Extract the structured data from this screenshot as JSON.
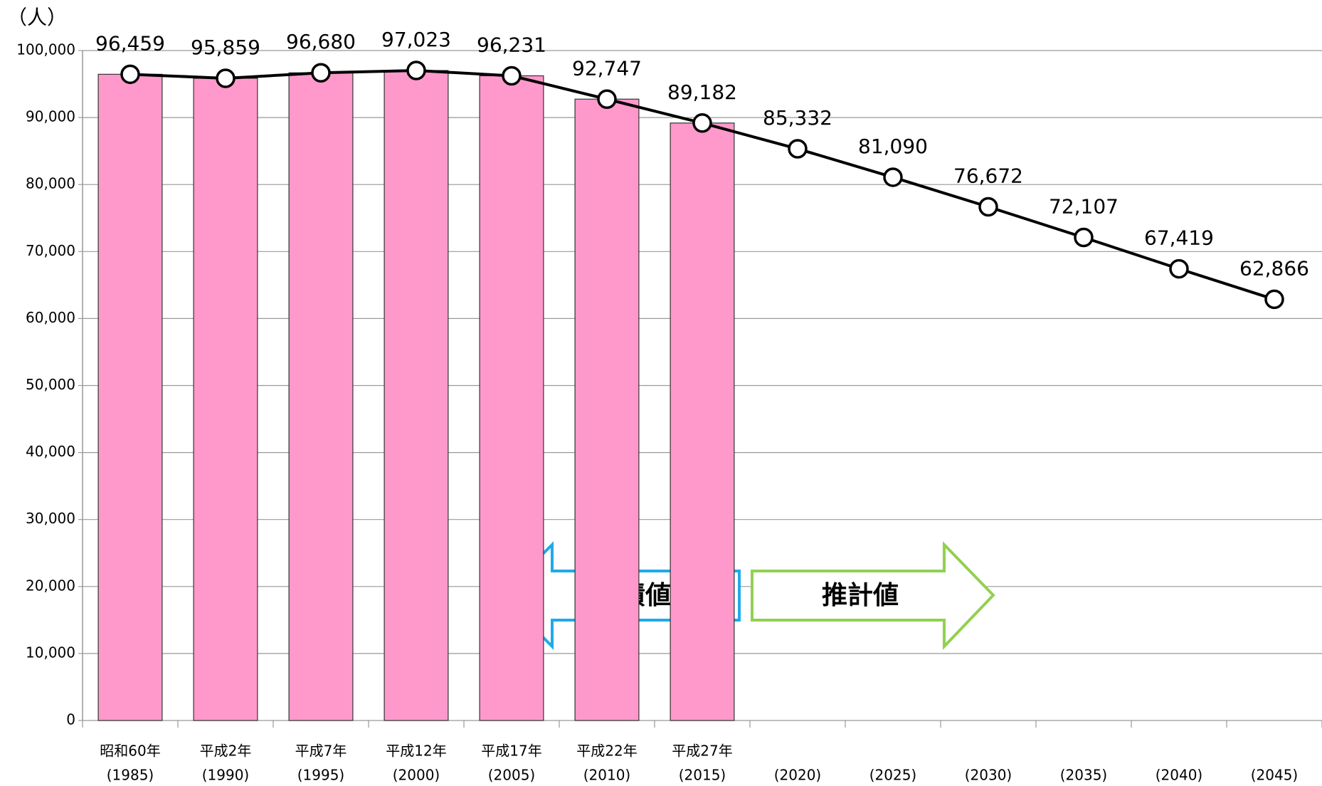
{
  "chart_data": {
    "type": "bar-line",
    "y_unit": "（人）",
    "categories": [
      [
        "昭和60年",
        "(1985)"
      ],
      [
        "平成2年",
        "(1990)"
      ],
      [
        "平成7年",
        "(1995)"
      ],
      [
        "平成12年",
        "(2000)"
      ],
      [
        "平成17年",
        "(2005)"
      ],
      [
        "平成22年",
        "(2010)"
      ],
      [
        "平成27年",
        "(2015)"
      ],
      [
        "(2020)"
      ],
      [
        "(2025)"
      ],
      [
        "(2030)"
      ],
      [
        "(2035)"
      ],
      [
        "(2040)"
      ],
      [
        "(2045)"
      ]
    ],
    "series": [
      {
        "type": "bar",
        "color": "#ff99cc",
        "values": [
          96459,
          95859,
          96680,
          97023,
          96231,
          92747,
          89182,
          null,
          null,
          null,
          null,
          null,
          null
        ]
      },
      {
        "type": "line",
        "color": "#000000",
        "values": [
          96459,
          95859,
          96680,
          97023,
          96231,
          92747,
          89182,
          85332,
          81090,
          76672,
          72107,
          67419,
          62866
        ],
        "value_labels": [
          "96,459",
          "95,859",
          "96,680",
          "97,023",
          "96,231",
          "92,747",
          "89,182",
          "85,332",
          "81,090",
          "76,672",
          "72,107",
          "67,419",
          "62,866"
        ]
      }
    ],
    "ylim": [
      0,
      100000
    ],
    "yticks": [
      0,
      {
        "value": 10000,
        "label": "10,000"
      },
      {
        "value": 20000,
        "label": "20,000"
      },
      {
        "value": 30000,
        "label": "30,000"
      },
      {
        "value": 40000,
        "label": "40,000"
      },
      {
        "value": 50000,
        "label": "50,000"
      },
      {
        "value": 60000,
        "label": "60,000"
      },
      {
        "value": 70000,
        "label": "70,000"
      },
      {
        "value": 80000,
        "label": "80,000"
      },
      {
        "value": 90000,
        "label": "90,000"
      },
      {
        "value": 100000,
        "label": "100,000"
      }
    ],
    "grid": true,
    "annotations": [
      "実績値",
      "推計値"
    ]
  }
}
